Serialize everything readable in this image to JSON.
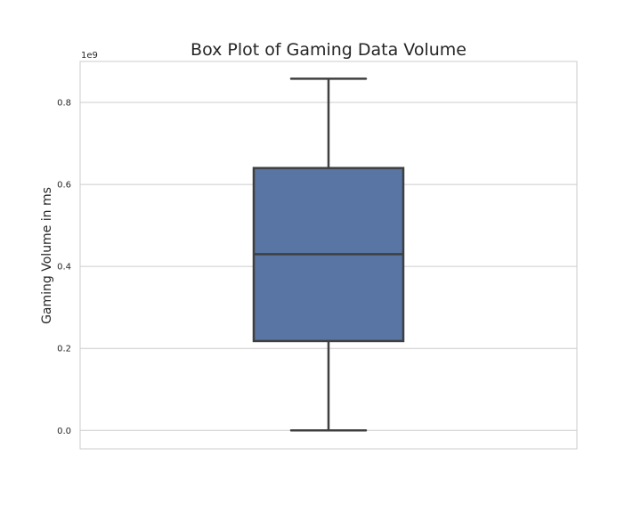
{
  "chart_data": {
    "type": "box",
    "title": "Box Plot of Gaming Data Volume",
    "xlabel": "",
    "ylabel": "Gaming Volume in ms",
    "y_offset_label": "1e9",
    "ylim": [
      -0.045,
      0.9
    ],
    "y_scale": 1000000000,
    "yticks": [
      0.0,
      0.2,
      0.4,
      0.6,
      0.8
    ],
    "ytick_labels": [
      "0.0",
      "0.2",
      "0.4",
      "0.6",
      "0.8"
    ],
    "grid": true,
    "box": {
      "whisker_low": 0.0,
      "q1": 0.218,
      "median": 0.43,
      "q3": 0.64,
      "whisker_high": 0.858
    },
    "colors": {
      "box_fill": "#5875a4",
      "box_edge": "#3f3f3f",
      "grid": "#cccccc",
      "spine": "#cccccc"
    }
  }
}
